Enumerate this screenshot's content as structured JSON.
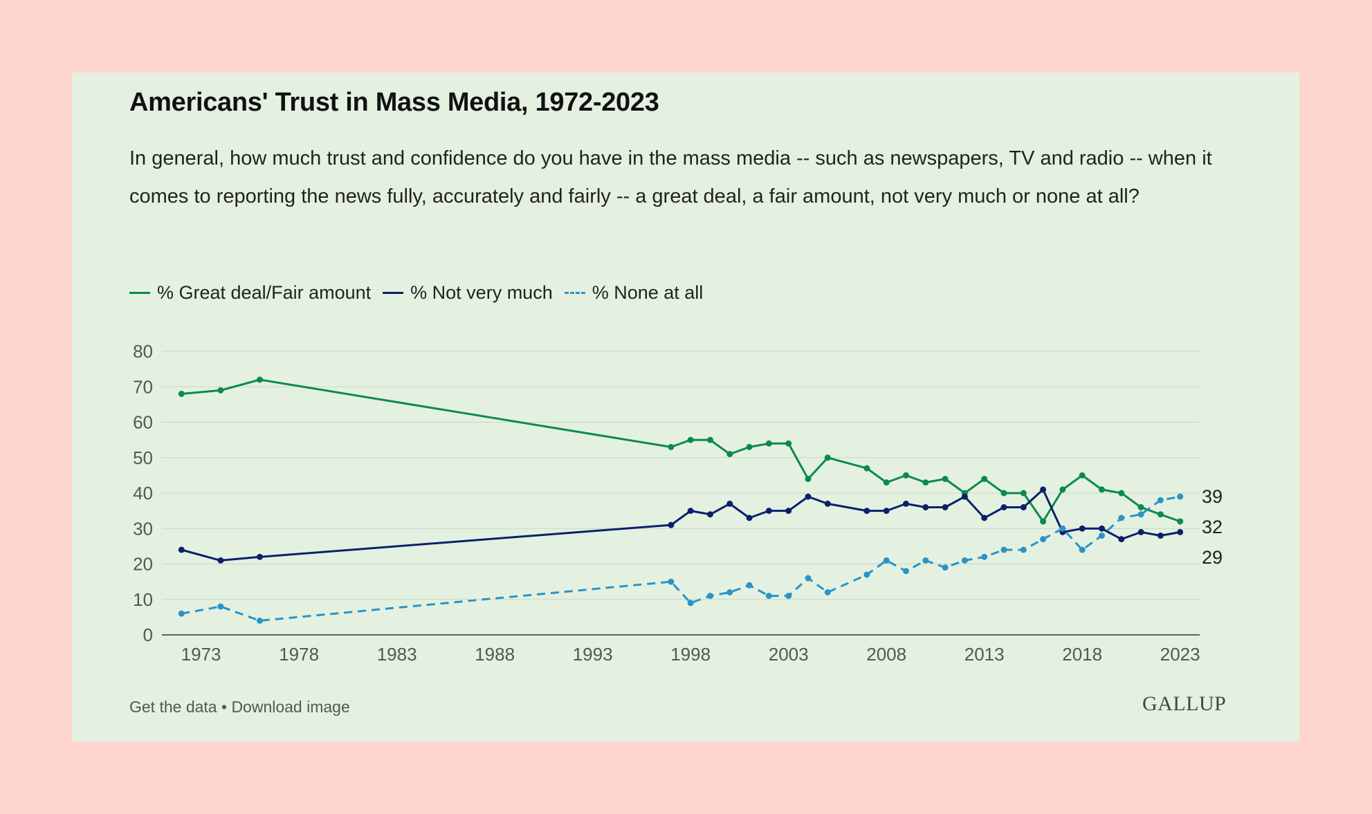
{
  "page": {
    "title": "Americans' Trust in Mass Media, 1972-2023",
    "subtitle": "In general, how much trust and confidence do you have in the mass media -- such as newspapers, TV and radio -- when it comes to reporting the news fully, accurately and fairly -- a great deal, a fair amount, not very much or none at all?",
    "footer": {
      "get_data": "Get the data",
      "separator": " • ",
      "download": "Download image"
    },
    "brand": "GALLUP"
  },
  "colors": {
    "page_background": "#ffd6cf",
    "card_background": "#e4f1e1",
    "great_deal": "#0b8a4c",
    "not_very_much": "#0c1f6b",
    "none_at_all": "#2b93c6"
  },
  "chart_data": {
    "type": "line",
    "title": "Americans' Trust in Mass Media, 1972-2023",
    "xlabel": "",
    "ylabel": "",
    "xlim": [
      1971,
      2024
    ],
    "ylim": [
      0,
      80
    ],
    "x_ticks": [
      1973,
      1978,
      1983,
      1988,
      1993,
      1998,
      2003,
      2008,
      2013,
      2018,
      2023
    ],
    "y_ticks": [
      0,
      10,
      20,
      30,
      40,
      50,
      60,
      70,
      80
    ],
    "grid": true,
    "legend_position": "top-left",
    "x": [
      1972,
      1974,
      1976,
      1997,
      1998,
      1999,
      2000,
      2001,
      2002,
      2003,
      2004,
      2005,
      2007,
      2008,
      2009,
      2010,
      2011,
      2012,
      2013,
      2014,
      2015,
      2016,
      2017,
      2018,
      2019,
      2020,
      2021,
      2022,
      2023
    ],
    "series": [
      {
        "name": "% Great deal/Fair amount",
        "color": "#0b8a4c",
        "style": "solid",
        "values": [
          68,
          69,
          72,
          53,
          55,
          55,
          51,
          53,
          54,
          54,
          44,
          50,
          47,
          43,
          45,
          43,
          44,
          40,
          44,
          40,
          40,
          32,
          41,
          45,
          41,
          40,
          36,
          34,
          32
        ],
        "end_label": "32"
      },
      {
        "name": "% Not very much",
        "color": "#0c1f6b",
        "style": "solid",
        "values": [
          24,
          21,
          22,
          31,
          35,
          34,
          37,
          33,
          35,
          35,
          39,
          37,
          35,
          35,
          37,
          36,
          36,
          39,
          33,
          36,
          36,
          41,
          29,
          30,
          30,
          27,
          29,
          28,
          29
        ],
        "end_label": "29"
      },
      {
        "name": "% None at all",
        "color": "#2b93c6",
        "style": "dashed",
        "values": [
          6,
          8,
          4,
          15,
          9,
          11,
          12,
          14,
          11,
          11,
          16,
          12,
          17,
          21,
          18,
          21,
          19,
          21,
          22,
          24,
          24,
          27,
          30,
          24,
          28,
          33,
          34,
          38,
          39
        ],
        "end_label": "39"
      }
    ]
  }
}
